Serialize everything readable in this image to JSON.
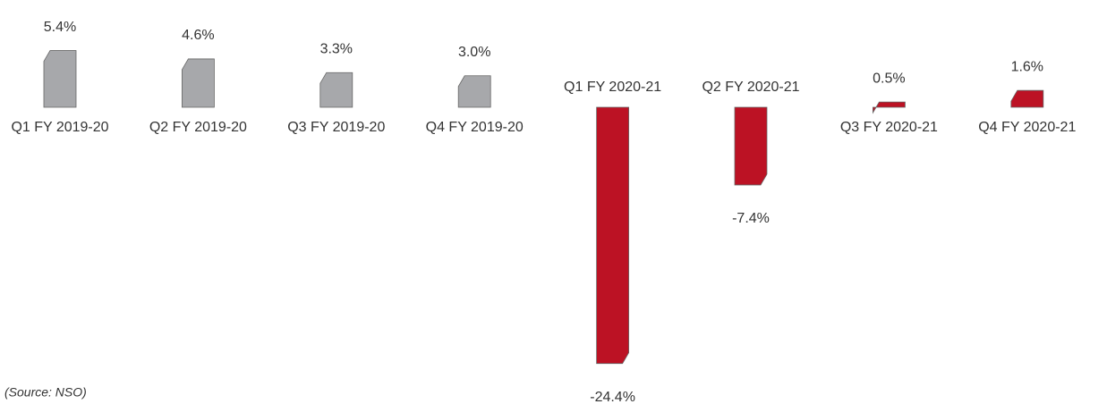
{
  "chart_data": {
    "type": "bar",
    "categories": [
      "Q1 FY 2019-20",
      "Q2 FY 2019-20",
      "Q3 FY 2019-20",
      "Q4 FY 2019-20",
      "Q1 FY 2020-21",
      "Q2 FY 2020-21",
      "Q3 FY 2020-21",
      "Q4 FY 2020-21"
    ],
    "values": [
      5.4,
      4.6,
      3.3,
      3.0,
      -24.4,
      -7.4,
      0.5,
      1.6
    ],
    "value_labels": [
      "5.4%",
      "4.6%",
      "3.3%",
      "3.0%",
      "-24.4%",
      "-7.4%",
      "0.5%",
      "1.6%"
    ],
    "colors": [
      "#a7a8ab",
      "#a7a8ab",
      "#a7a8ab",
      "#a7a8ab",
      "#bc1224",
      "#bc1224",
      "#bc1224",
      "#bc1224"
    ],
    "source": "(Source: NSO)"
  }
}
